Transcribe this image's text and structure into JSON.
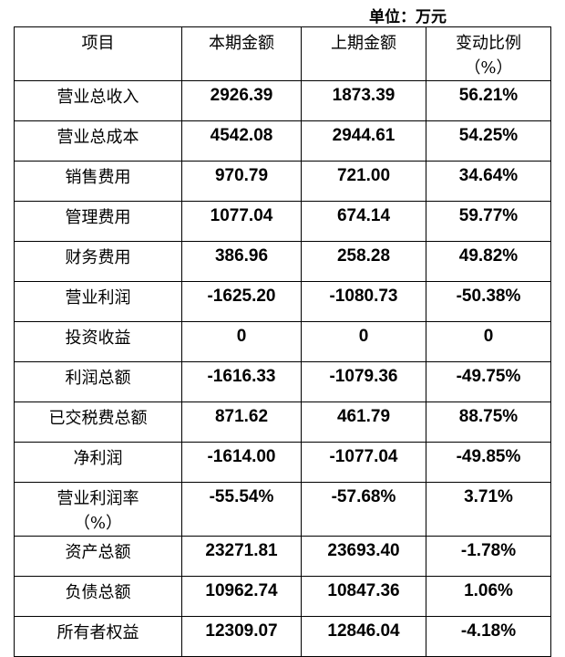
{
  "unit_label": "单位：万元",
  "headers": [
    "项目",
    "本期金额",
    "上期金额",
    "变动比例（%）"
  ],
  "header_lines": {
    "change_line1": "变动比例",
    "change_line2": "（%）"
  },
  "rows": [
    {
      "item": "营业总收入",
      "current": "2926.39",
      "previous": "1873.39",
      "change": "56.21%"
    },
    {
      "item": "营业总成本",
      "current": "4542.08",
      "previous": "2944.61",
      "change": "54.25%"
    },
    {
      "item": "销售费用",
      "current": "970.79",
      "previous": "721.00",
      "change": "34.64%"
    },
    {
      "item": "管理费用",
      "current": "1077.04",
      "previous": "674.14",
      "change": "59.77%"
    },
    {
      "item": "财务费用",
      "current": "386.96",
      "previous": "258.28",
      "change": "49.82%"
    },
    {
      "item": "营业利润",
      "current": "-1625.20",
      "previous": "-1080.73",
      "change": "-50.38%"
    },
    {
      "item": "投资收益",
      "current": "0",
      "previous": "0",
      "change": "0"
    },
    {
      "item": "利润总额",
      "current": "-1616.33",
      "previous": "-1079.36",
      "change": "-49.75%"
    },
    {
      "item": "已交税费总额",
      "current": "871.62",
      "previous": "461.79",
      "change": "88.75%"
    },
    {
      "item": "净利润",
      "current": "-1614.00",
      "previous": "-1077.04",
      "change": "-49.85%"
    },
    {
      "item": "营业利润率（%）",
      "current": "-55.54%",
      "previous": "-57.68%",
      "change": "3.71%"
    },
    {
      "item": "资产总额",
      "current": "23271.81",
      "previous": "23693.40",
      "change": "-1.78%"
    },
    {
      "item": "负债总额",
      "current": "10962.74",
      "previous": "10847.36",
      "change": "1.06%"
    },
    {
      "item": "所有者权益",
      "current": "12309.07",
      "previous": "12846.04",
      "change": "-4.18%"
    }
  ]
}
